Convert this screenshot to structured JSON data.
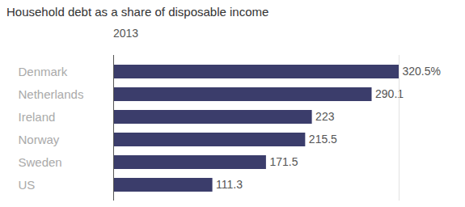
{
  "chart_data": {
    "type": "bar",
    "title": "Household debt as a share of disposable income",
    "subtitle": "2013",
    "orientation": "horizontal",
    "categories": [
      "Denmark",
      "Netherlands",
      "Ireland",
      "Norway",
      "Sweden",
      "US"
    ],
    "values": [
      320.5,
      290.1,
      223,
      215.5,
      171.5,
      111.3
    ],
    "value_labels": [
      "320.5%",
      "290.1",
      "223",
      "215.5",
      "171.5",
      "111.3"
    ],
    "color": "#3b3d6b",
    "xlim": [
      0,
      320.5
    ],
    "data_labels": true,
    "tick_labels": "y",
    "grid": false
  }
}
